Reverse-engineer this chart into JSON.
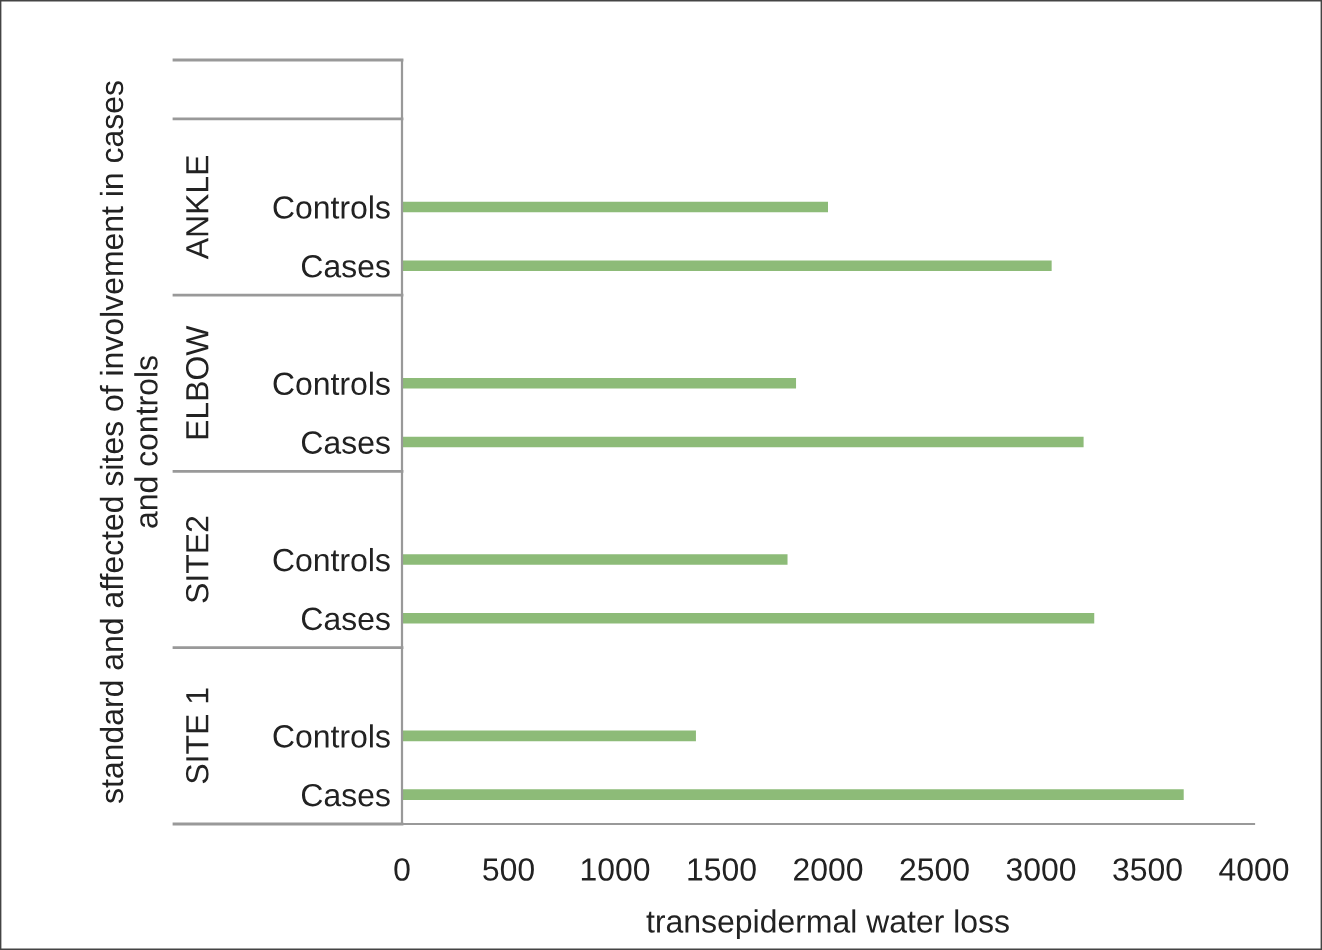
{
  "chart_data": {
    "type": "bar",
    "orientation": "horizontal",
    "xlabel": "transepidermal water loss",
    "ylabel": "standard and affected sites of involvement in cases\nand controls",
    "categories": [
      null,
      null,
      "Controls",
      "Cases",
      null,
      "Controls",
      "Cases",
      null,
      "Controls",
      "Cases",
      null,
      "Controls",
      "Cases"
    ],
    "values": [
      null,
      null,
      2000,
      3050,
      null,
      1850,
      3200,
      null,
      1810,
      3250,
      null,
      1380,
      3670
    ],
    "color": "#8dbb78",
    "annotations": [
      "ANKLE",
      "ELBOW",
      "SITE2",
      "SITE 1"
    ],
    "xlim": [
      0,
      4000
    ],
    "xticks": [
      0,
      500,
      1000,
      1500,
      2000,
      2500,
      3000,
      3500,
      4000
    ],
    "grid": false,
    "legend": false
  }
}
